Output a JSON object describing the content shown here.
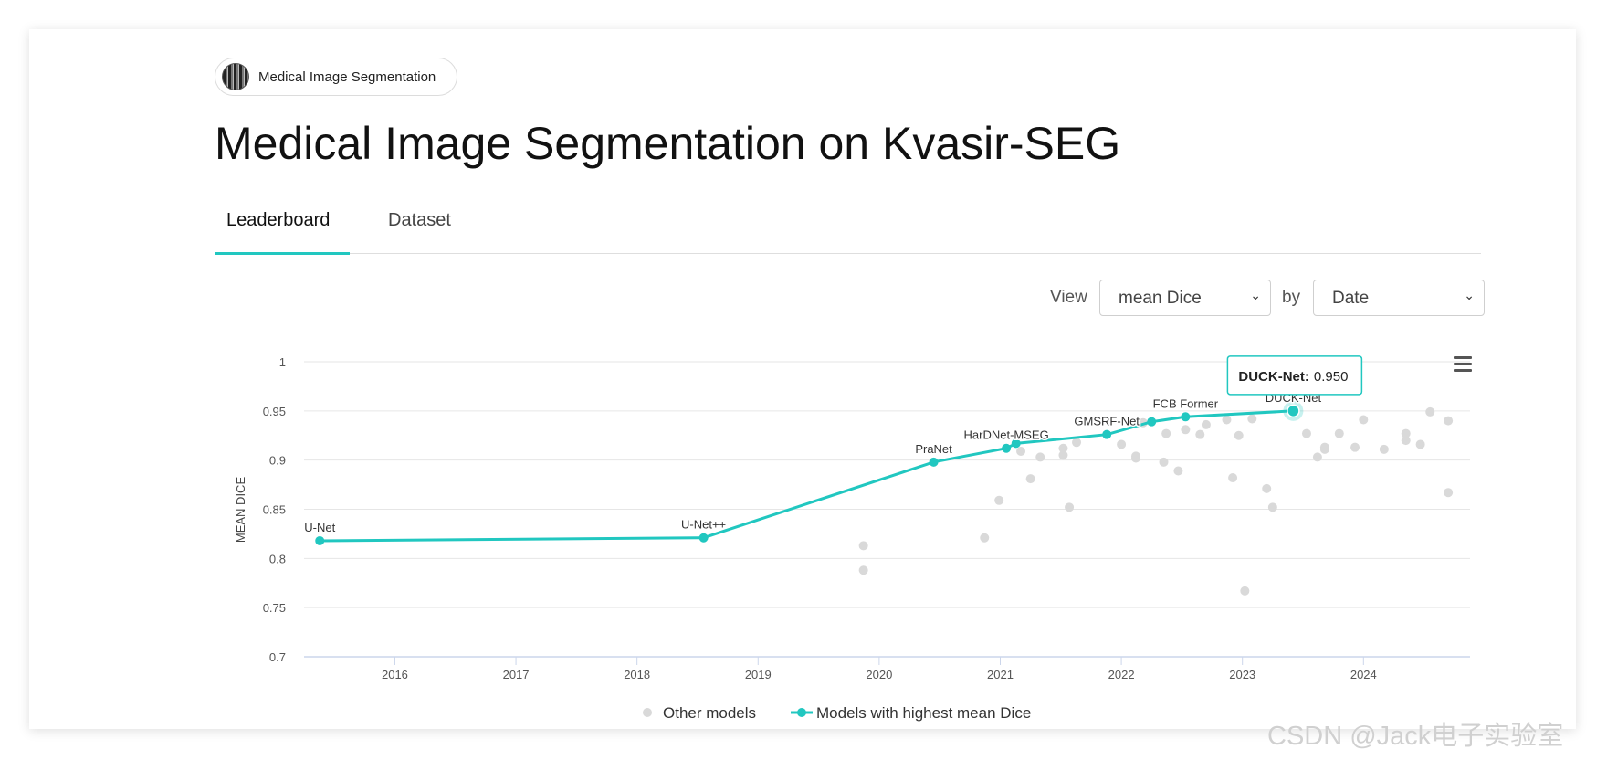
{
  "badge": {
    "label": "Medical Image Segmentation"
  },
  "page": {
    "title": "Medical Image Segmentation on Kvasir-SEG"
  },
  "tabs": [
    {
      "label": "Leaderboard",
      "active": true
    },
    {
      "label": "Dataset",
      "active": false
    }
  ],
  "controls": {
    "view_label": "View",
    "metric_select": "mean Dice",
    "by_label": "by",
    "order_select": "Date"
  },
  "chart_data": {
    "type": "scatter",
    "title": "",
    "xlabel": "",
    "ylabel": "MEAN DICE",
    "xlim": [
      2015.25,
      2024.88
    ],
    "ylim": [
      0.7,
      1.0
    ],
    "x_ticks": [
      "2016",
      "2017",
      "2018",
      "2019",
      "2020",
      "2021",
      "2022",
      "2023",
      "2024"
    ],
    "x_tick_values": [
      2016,
      2017,
      2018,
      2019,
      2020,
      2021,
      2022,
      2023,
      2024
    ],
    "y_ticks": [
      "0.7",
      "0.75",
      "0.8",
      "0.85",
      "0.9",
      "0.95",
      "1"
    ],
    "y_tick_values": [
      0.7,
      0.75,
      0.8,
      0.85,
      0.9,
      0.95,
      1.0
    ],
    "legend": [
      "Other models",
      "Models with highest mean Dice"
    ],
    "series": [
      {
        "name": "Models with highest mean Dice",
        "color": "#21c7c0",
        "points": [
          {
            "x": 2015.38,
            "y": 0.818,
            "label": "U-Net"
          },
          {
            "x": 2018.55,
            "y": 0.821,
            "label": "U-Net++"
          },
          {
            "x": 2020.45,
            "y": 0.898,
            "label": "PraNet"
          },
          {
            "x": 2021.05,
            "y": 0.912,
            "label": "HarDNet-MSEG"
          },
          {
            "x": 2021.13,
            "y": 0.917,
            "label": ""
          },
          {
            "x": 2021.88,
            "y": 0.926,
            "label": "GMSRF-Net"
          },
          {
            "x": 2022.25,
            "y": 0.939,
            "label": ""
          },
          {
            "x": 2022.53,
            "y": 0.944,
            "label": "FCB Former"
          },
          {
            "x": 2023.42,
            "y": 0.95,
            "label": "DUCK-Net"
          }
        ]
      },
      {
        "name": "Other models",
        "color": "#d9d9d9",
        "points": [
          {
            "x": 2019.87,
            "y": 0.813
          },
          {
            "x": 2019.87,
            "y": 0.788
          },
          {
            "x": 2020.87,
            "y": 0.821
          },
          {
            "x": 2020.99,
            "y": 0.859
          },
          {
            "x": 2021.17,
            "y": 0.909
          },
          {
            "x": 2021.25,
            "y": 0.881
          },
          {
            "x": 2021.33,
            "y": 0.903
          },
          {
            "x": 2021.52,
            "y": 0.912
          },
          {
            "x": 2021.52,
            "y": 0.905
          },
          {
            "x": 2021.57,
            "y": 0.852
          },
          {
            "x": 2021.63,
            "y": 0.918
          },
          {
            "x": 2022.0,
            "y": 0.916
          },
          {
            "x": 2022.12,
            "y": 0.904
          },
          {
            "x": 2022.12,
            "y": 0.902
          },
          {
            "x": 2022.18,
            "y": 0.938
          },
          {
            "x": 2022.35,
            "y": 0.898
          },
          {
            "x": 2022.37,
            "y": 0.927
          },
          {
            "x": 2022.47,
            "y": 0.889
          },
          {
            "x": 2022.53,
            "y": 0.931
          },
          {
            "x": 2022.65,
            "y": 0.926
          },
          {
            "x": 2022.7,
            "y": 0.936
          },
          {
            "x": 2022.87,
            "y": 0.941
          },
          {
            "x": 2022.92,
            "y": 0.882
          },
          {
            "x": 2022.97,
            "y": 0.925
          },
          {
            "x": 2023.02,
            "y": 0.767
          },
          {
            "x": 2023.08,
            "y": 0.942
          },
          {
            "x": 2023.2,
            "y": 0.871
          },
          {
            "x": 2023.25,
            "y": 0.852
          },
          {
            "x": 2023.53,
            "y": 0.927
          },
          {
            "x": 2023.62,
            "y": 0.903
          },
          {
            "x": 2023.68,
            "y": 0.911
          },
          {
            "x": 2023.68,
            "y": 0.913
          },
          {
            "x": 2023.8,
            "y": 0.927
          },
          {
            "x": 2023.93,
            "y": 0.913
          },
          {
            "x": 2024.0,
            "y": 0.941
          },
          {
            "x": 2024.17,
            "y": 0.911
          },
          {
            "x": 2024.35,
            "y": 0.927
          },
          {
            "x": 2024.35,
            "y": 0.92
          },
          {
            "x": 2024.47,
            "y": 0.916
          },
          {
            "x": 2024.55,
            "y": 0.949
          },
          {
            "x": 2024.7,
            "y": 0.94
          },
          {
            "x": 2024.7,
            "y": 0.867
          }
        ]
      }
    ],
    "tooltip": {
      "model": "DUCK-Net",
      "value": "0.950"
    }
  },
  "watermark": "CSDN @Jack电子实验室"
}
